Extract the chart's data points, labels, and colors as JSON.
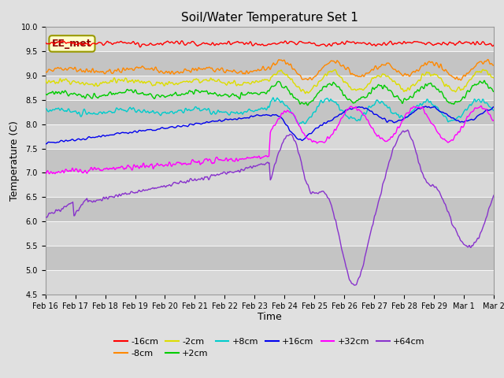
{
  "title": "Soil/Water Temperature Set 1",
  "xlabel": "Time",
  "ylabel": "Temperature (C)",
  "ylim": [
    4.5,
    10.0
  ],
  "yticks": [
    4.5,
    5.0,
    5.5,
    6.0,
    6.5,
    7.0,
    7.5,
    8.0,
    8.5,
    9.0,
    9.5,
    10.0
  ],
  "bg_color": "#e0e0e0",
  "plot_bg_color": "#c8c8c8",
  "annotation_label": "EE_met",
  "legend_entries": [
    "-16cm",
    "-8cm",
    "-2cm",
    "+2cm",
    "+8cm",
    "+16cm",
    "+32cm",
    "+64cm"
  ],
  "line_colors": [
    "#ff0000",
    "#ff8800",
    "#dddd00",
    "#00cc00",
    "#00cccc",
    "#0000ee",
    "#ff00ff",
    "#8833cc"
  ],
  "date_labels": [
    "Feb 16",
    "Feb 17",
    "Feb 18",
    "Feb 19",
    "Feb 20",
    "Feb 21",
    "Feb 22",
    "Feb 23",
    "Feb 24",
    "Feb 25",
    "Feb 26",
    "Feb 27",
    "Feb 28",
    "Feb 29",
    "Mar 1",
    "Mar 2"
  ],
  "stripe_colors": [
    "#d4d4d4",
    "#bebebe"
  ]
}
